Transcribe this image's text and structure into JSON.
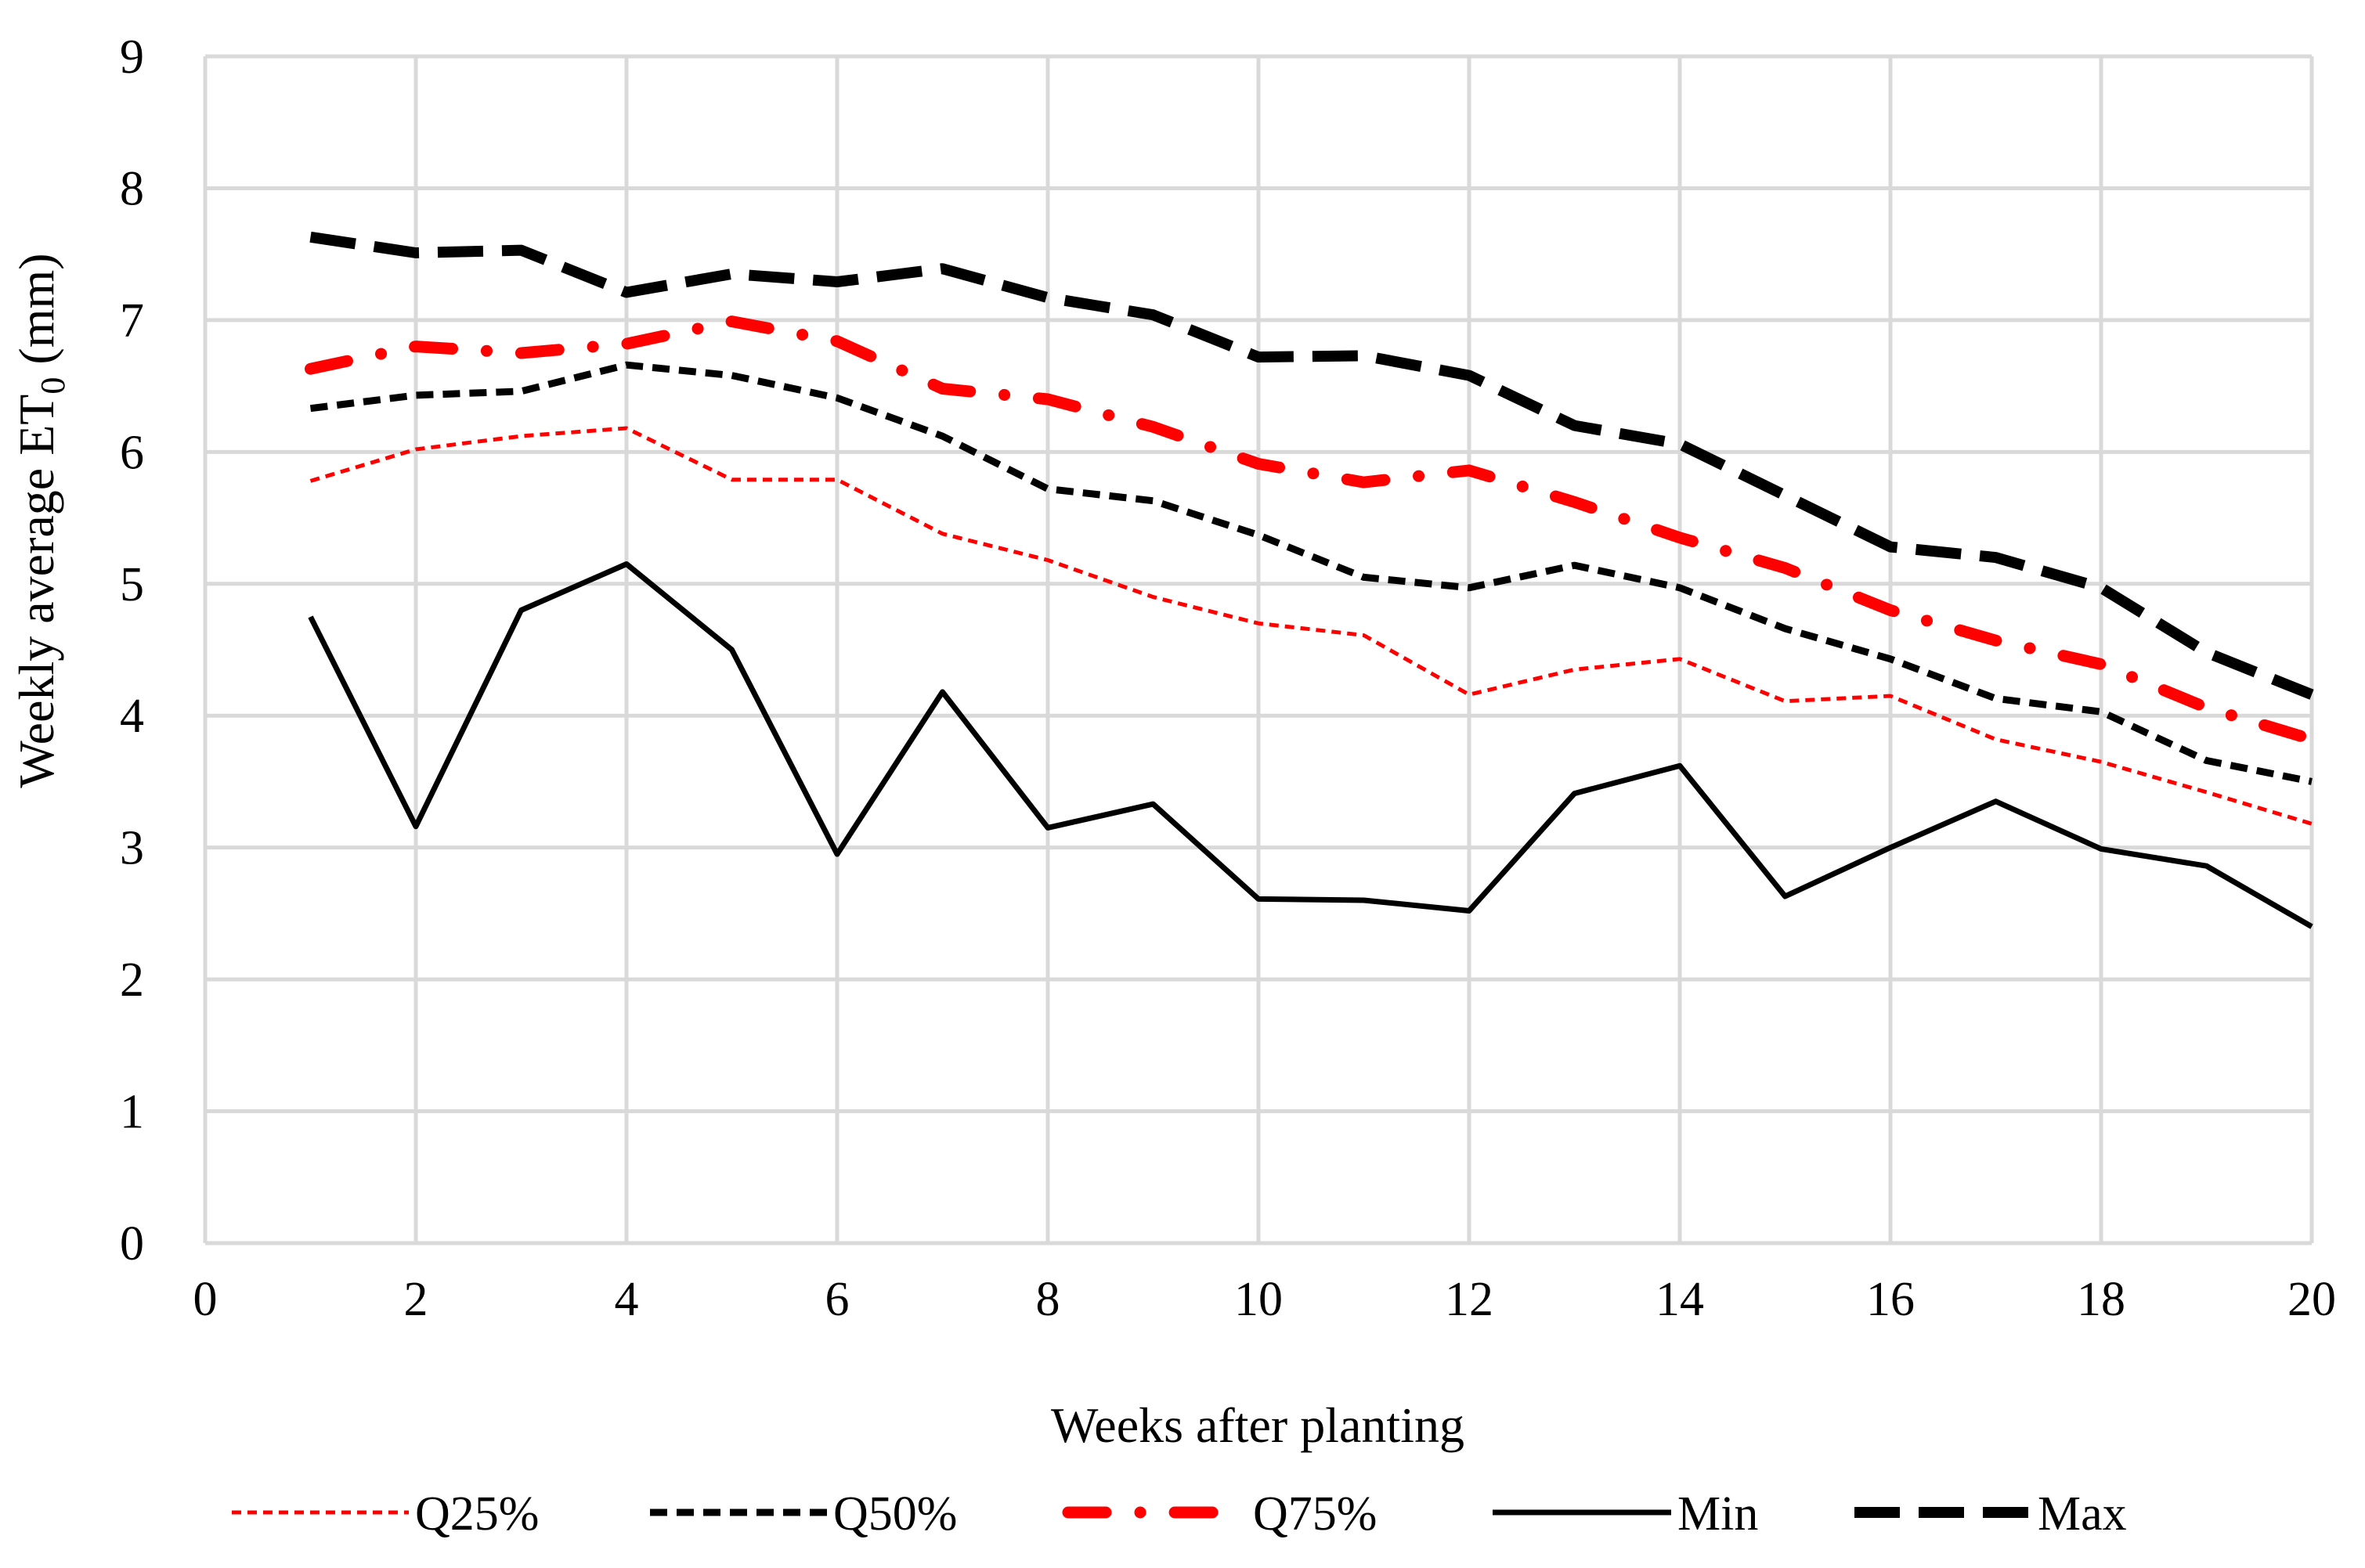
{
  "chart_data": {
    "type": "line",
    "title": "",
    "xlabel": "Weeks after planting",
    "ylabel": {
      "main": "Weekly average ET",
      "subscript": "0",
      "units": " (mm)"
    },
    "xlim": [
      0,
      20
    ],
    "ylim": [
      0,
      9
    ],
    "xticks": [
      "0",
      "2",
      "4",
      "6",
      "8",
      "10",
      "12",
      "14",
      "16",
      "18",
      "20"
    ],
    "yticks": [
      "0",
      "1",
      "2",
      "3",
      "4",
      "5",
      "6",
      "7",
      "8",
      "9"
    ],
    "grid": true,
    "legend_position": "bottom",
    "x": [
      1,
      2,
      3,
      4,
      5,
      6,
      7,
      8,
      9,
      10,
      11,
      12,
      13,
      14,
      15,
      16,
      17,
      18,
      19,
      20
    ],
    "series": [
      {
        "name": "Q25%",
        "color": "#ff0000",
        "style": "short-dash-thin",
        "values": [
          5.78,
          6.02,
          6.12,
          6.18,
          5.79,
          5.79,
          5.38,
          5.18,
          4.9,
          4.7,
          4.61,
          4.16,
          4.35,
          4.43,
          4.11,
          4.15,
          3.82,
          3.65,
          3.42,
          3.18
        ]
      },
      {
        "name": "Q50%",
        "color": "#000000",
        "style": "short-dash",
        "values": [
          6.33,
          6.43,
          6.46,
          6.66,
          6.58,
          6.41,
          6.12,
          5.72,
          5.63,
          5.37,
          5.05,
          4.97,
          5.14,
          4.97,
          4.66,
          4.43,
          4.13,
          4.03,
          3.66,
          3.5
        ]
      },
      {
        "name": "Q75%",
        "color": "#ff0000",
        "style": "dash-dot-thick",
        "values": [
          6.63,
          6.8,
          6.75,
          6.82,
          6.99,
          6.84,
          6.48,
          6.4,
          6.19,
          5.91,
          5.77,
          5.86,
          5.62,
          5.35,
          5.12,
          4.8,
          4.57,
          4.39,
          4.06,
          3.82
        ]
      },
      {
        "name": "Min",
        "color": "#000000",
        "style": "solid",
        "values": [
          4.75,
          3.16,
          4.8,
          5.15,
          4.5,
          2.95,
          4.18,
          3.15,
          3.33,
          2.61,
          2.6,
          2.52,
          3.41,
          3.62,
          2.63,
          3.0,
          3.35,
          2.99,
          2.86,
          2.4
        ]
      },
      {
        "name": "Max",
        "color": "#000000",
        "style": "long-dash-thick",
        "values": [
          7.63,
          7.51,
          7.53,
          7.21,
          7.35,
          7.29,
          7.39,
          7.17,
          7.04,
          6.72,
          6.73,
          6.58,
          6.2,
          6.06,
          5.67,
          5.28,
          5.2,
          4.97,
          4.48,
          4.16
        ]
      }
    ]
  }
}
